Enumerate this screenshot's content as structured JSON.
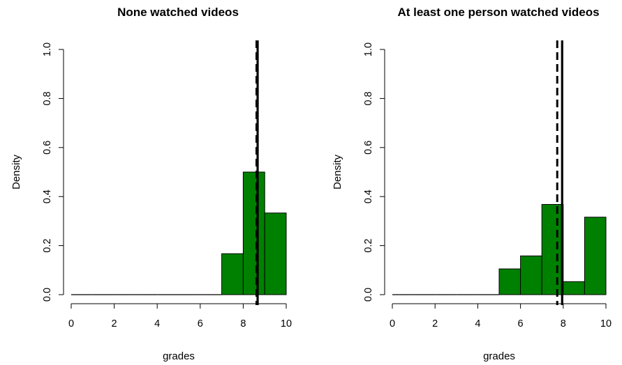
{
  "chart_data": [
    {
      "type": "bar",
      "title": "None watched videos",
      "xlabel": "grades",
      "ylabel": "Density",
      "xlim": [
        0,
        10
      ],
      "ylim": [
        0,
        1.0
      ],
      "x_ticks": [
        "0",
        "2",
        "4",
        "6",
        "8",
        "10"
      ],
      "y_ticks": [
        "0.0",
        "0.2",
        "0.4",
        "0.6",
        "0.8",
        "1.0"
      ],
      "bin_edges": [
        0,
        1,
        2,
        3,
        4,
        5,
        6,
        7,
        8,
        9,
        10
      ],
      "values": [
        0,
        0,
        0,
        0,
        0,
        0,
        0,
        0.167,
        0.5,
        0.333
      ],
      "bar_color": "#008000",
      "vlines": [
        {
          "style": "dashed",
          "x": 8.62
        },
        {
          "style": "solid",
          "x": 8.67
        }
      ]
    },
    {
      "type": "bar",
      "title": "At least one person watched videos",
      "xlabel": "grades",
      "ylabel": "Density",
      "xlim": [
        0,
        10
      ],
      "ylim": [
        0,
        1.0
      ],
      "x_ticks": [
        "0",
        "2",
        "4",
        "6",
        "8",
        "10"
      ],
      "y_ticks": [
        "0.0",
        "0.2",
        "0.4",
        "0.6",
        "0.8",
        "1.0"
      ],
      "bin_edges": [
        0,
        1,
        2,
        3,
        4,
        5,
        6,
        7,
        8,
        9,
        10
      ],
      "values": [
        0,
        0,
        0,
        0,
        0,
        0.105,
        0.158,
        0.368,
        0.053,
        0.316
      ],
      "bar_color": "#008000",
      "vlines": [
        {
          "style": "dashed",
          "x": 7.72
        },
        {
          "style": "solid",
          "x": 7.95
        }
      ]
    }
  ]
}
